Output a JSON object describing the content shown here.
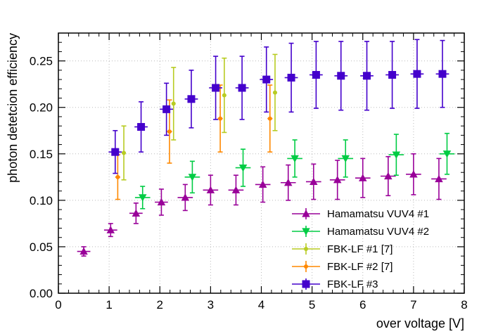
{
  "chart_data": {
    "type": "scatter",
    "title": "",
    "xlabel": "over voltage [V]",
    "ylabel": "photon detetcion efficiency",
    "xlim": [
      0,
      8
    ],
    "ylim": [
      0,
      0.28
    ],
    "grid": true,
    "legend_position": "bottom-right",
    "x_ticks": [
      0,
      1,
      2,
      3,
      4,
      5,
      6,
      7,
      8
    ],
    "x_tick_labels": [
      "0",
      "1",
      "2",
      "3",
      "4",
      "5",
      "6",
      "7",
      "8"
    ],
    "y_ticks": [
      0,
      0.05,
      0.1,
      0.15,
      0.2,
      0.25
    ],
    "y_tick_labels": [
      "0.00",
      "0.05",
      "0.10",
      "0.15",
      "0.20",
      "0.25"
    ],
    "series": [
      {
        "name": "Hamamatsu VUV4 #1",
        "color": "#990099",
        "marker": "triangle-up",
        "x": [
          0.5,
          1.03,
          1.53,
          2.03,
          2.5,
          3.0,
          3.5,
          4.03,
          4.53,
          5.03,
          5.5,
          6.0,
          6.5,
          7.0,
          7.5
        ],
        "y": [
          0.045,
          0.068,
          0.086,
          0.098,
          0.103,
          0.111,
          0.111,
          0.117,
          0.119,
          0.12,
          0.122,
          0.124,
          0.126,
          0.128,
          0.123
        ],
        "x_err": [
          0.13,
          0.13,
          0.13,
          0.13,
          0.15,
          0.15,
          0.15,
          0.15,
          0.15,
          0.15,
          0.15,
          0.15,
          0.15,
          0.15,
          0.15
        ],
        "y_err": [
          0.005,
          0.007,
          0.011,
          0.014,
          0.014,
          0.016,
          0.016,
          0.019,
          0.019,
          0.019,
          0.021,
          0.021,
          0.021,
          0.022,
          0.022
        ]
      },
      {
        "name": "Hamamatsu VUV4 #2",
        "color": "#00cc44",
        "marker": "triangle-down",
        "x": [
          1.66,
          2.64,
          3.64,
          4.66,
          5.66,
          6.66,
          7.66
        ],
        "y": [
          0.103,
          0.125,
          0.135,
          0.145,
          0.145,
          0.149,
          0.15
        ],
        "x_err": [
          0.15,
          0.15,
          0.15,
          0.15,
          0.15,
          0.15,
          0.15
        ],
        "y_err": [
          0.012,
          0.017,
          0.02,
          0.02,
          0.02,
          0.022,
          0.022
        ]
      },
      {
        "name": "FBK-LF #1 [7]",
        "color": "#b8cc22",
        "marker": "circle",
        "x": [
          1.29,
          2.27,
          3.27,
          4.27
        ],
        "y": [
          0.151,
          0.204,
          0.213,
          0.216
        ],
        "x_err": [
          0.04,
          0.04,
          0.04,
          0.04
        ],
        "y_err": [
          0.029,
          0.039,
          0.04,
          0.041
        ]
      },
      {
        "name": "FBK-LF #2 [7]",
        "color": "#ff8800",
        "marker": "circle",
        "x": [
          1.17,
          2.19,
          3.19,
          4.17
        ],
        "y": [
          0.125,
          0.174,
          0.188,
          0.188
        ],
        "x_err": [
          0.05,
          0.05,
          0.05,
          0.05
        ],
        "y_err": [
          0.024,
          0.034,
          0.036,
          0.036
        ]
      },
      {
        "name": "FBK-LF #3",
        "color": "#4400cc",
        "marker": "square",
        "x": [
          1.12,
          1.63,
          2.13,
          2.62,
          3.1,
          3.62,
          4.1,
          4.59,
          5.08,
          5.57,
          6.08,
          6.58,
          7.07,
          7.57
        ],
        "y": [
          0.152,
          0.179,
          0.198,
          0.209,
          0.221,
          0.221,
          0.23,
          0.232,
          0.235,
          0.234,
          0.234,
          0.235,
          0.236,
          0.236
        ],
        "x_err": [
          0.13,
          0.13,
          0.13,
          0.13,
          0.13,
          0.13,
          0.13,
          0.13,
          0.13,
          0.13,
          0.13,
          0.13,
          0.13,
          0.13
        ],
        "y_err": [
          0.023,
          0.027,
          0.028,
          0.031,
          0.034,
          0.034,
          0.035,
          0.037,
          0.036,
          0.037,
          0.037,
          0.036,
          0.037,
          0.036
        ]
      }
    ]
  }
}
